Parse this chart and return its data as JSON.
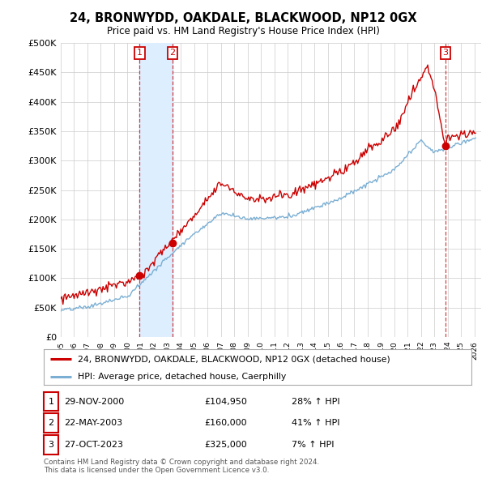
{
  "title": "24, BRONWYDD, OAKDALE, BLACKWOOD, NP12 0GX",
  "subtitle": "Price paid vs. HM Land Registry's House Price Index (HPI)",
  "ylim": [
    0,
    500000
  ],
  "yticks": [
    0,
    50000,
    100000,
    150000,
    200000,
    250000,
    300000,
    350000,
    400000,
    450000,
    500000
  ],
  "ytick_labels": [
    "£0",
    "£50K",
    "£100K",
    "£150K",
    "£200K",
    "£250K",
    "£300K",
    "£350K",
    "£400K",
    "£450K",
    "£500K"
  ],
  "xlim_start": 1995.0,
  "xlim_end": 2026.5,
  "sale_points": [
    {
      "num": 1,
      "year": 2000.91,
      "price": 104950,
      "label": "29-NOV-2000",
      "price_str": "£104,950",
      "pct": "28%",
      "dir": "↑"
    },
    {
      "num": 2,
      "year": 2003.38,
      "price": 160000,
      "label": "22-MAY-2003",
      "price_str": "£160,000",
      "pct": "41%",
      "dir": "↑"
    },
    {
      "num": 3,
      "year": 2023.82,
      "price": 325000,
      "label": "27-OCT-2023",
      "price_str": "£325,000",
      "pct": "7%",
      "dir": "↑"
    }
  ],
  "red_line_color": "#cc0000",
  "blue_line_color": "#7bafd4",
  "shaded_color": "#ddeeff",
  "grid_color": "#cccccc",
  "background_color": "#ffffff",
  "legend_label_red": "24, BRONWYDD, OAKDALE, BLACKWOOD, NP12 0GX (detached house)",
  "legend_label_blue": "HPI: Average price, detached house, Caerphilly",
  "footer": "Contains HM Land Registry data © Crown copyright and database right 2024.\nThis data is licensed under the Open Government Licence v3.0."
}
